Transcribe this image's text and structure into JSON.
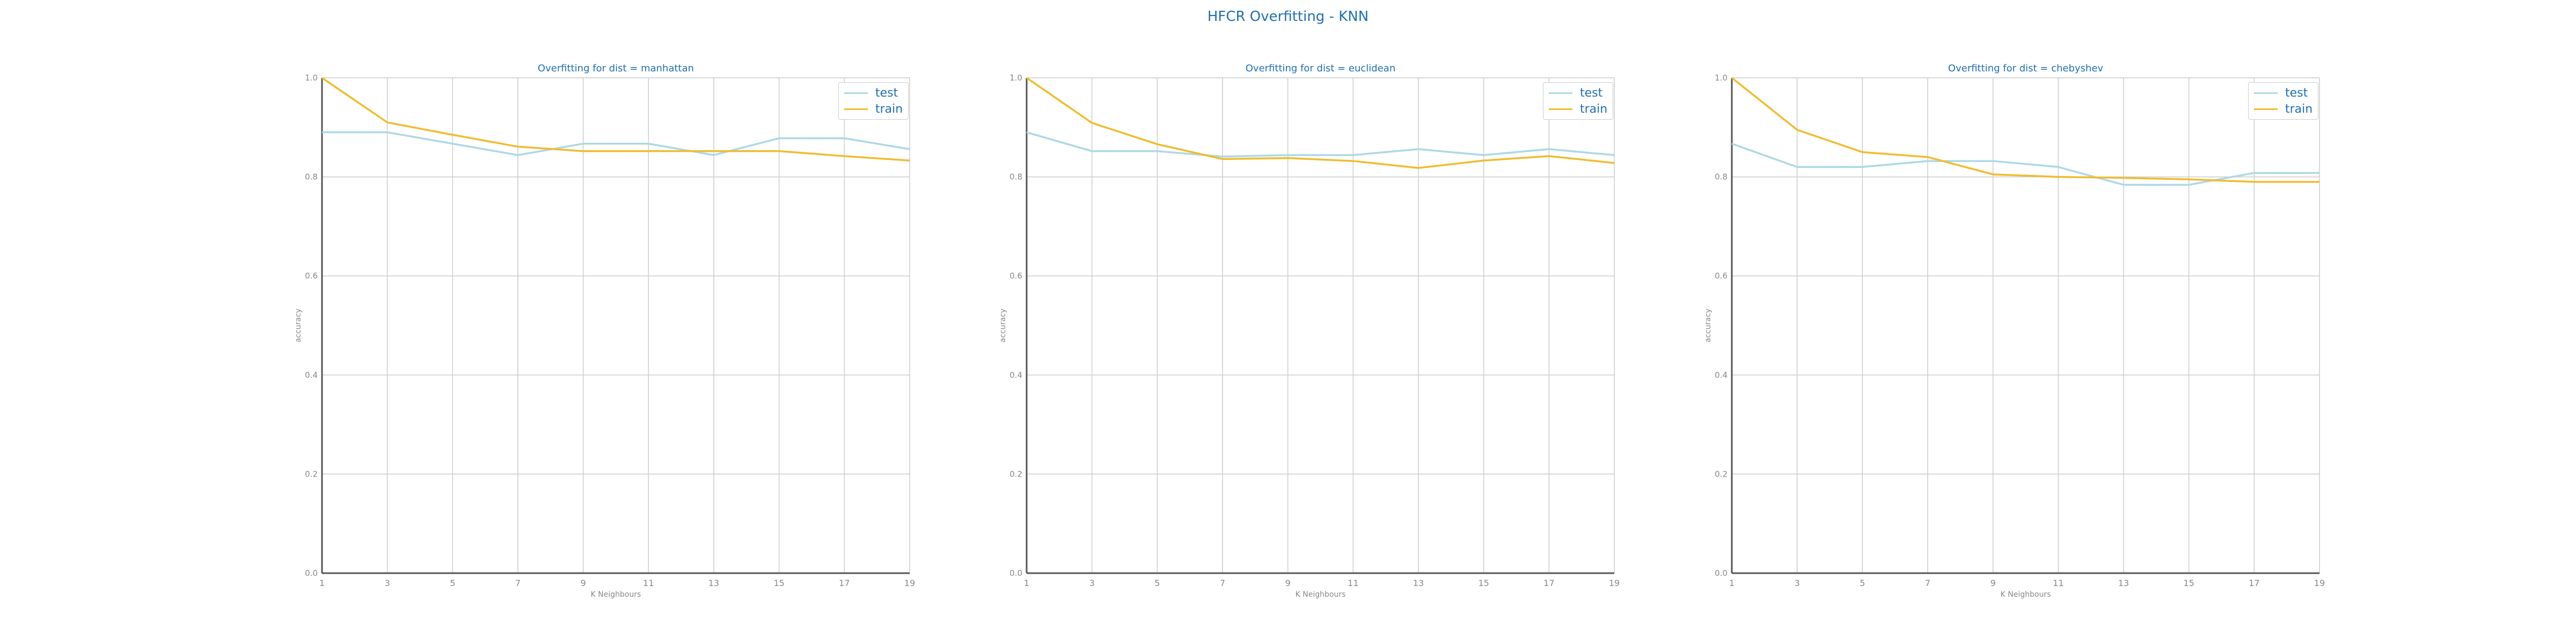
{
  "title": "HFCR Overfitting - KNN",
  "colors": {
    "test": "#add8e6",
    "train": "#f0bc2e",
    "text": "#1f6fb2",
    "grid": "#cccccc",
    "axis": "#555555",
    "tick": "#888888"
  },
  "chart_data": [
    {
      "type": "line",
      "title": "Overfitting for dist = manhattan",
      "xlabel": "K Neighbours",
      "ylabel": "accuracy",
      "x": [
        1,
        3,
        5,
        7,
        9,
        11,
        13,
        15,
        17,
        19
      ],
      "ylim": [
        0,
        1
      ],
      "yticks": [
        "0.0",
        "0.2",
        "0.4",
        "0.6",
        "0.8",
        "1.0"
      ],
      "legend_position": "top-right",
      "grid": true,
      "series": [
        {
          "name": "test",
          "color": "#add8e6",
          "values": [
            0.89,
            0.89,
            0.867,
            0.844,
            0.867,
            0.867,
            0.844,
            0.878,
            0.878,
            0.856
          ]
        },
        {
          "name": "train",
          "color": "#f0bc2e",
          "values": [
            1.0,
            0.91,
            0.885,
            0.861,
            0.852,
            0.852,
            0.852,
            0.852,
            0.842,
            0.833
          ]
        }
      ]
    },
    {
      "type": "line",
      "title": "Overfitting for dist = euclidean",
      "xlabel": "K Neighbours",
      "ylabel": "accuracy",
      "x": [
        1,
        3,
        5,
        7,
        9,
        11,
        13,
        15,
        17,
        19
      ],
      "ylim": [
        0,
        1
      ],
      "yticks": [
        "0.0",
        "0.2",
        "0.4",
        "0.6",
        "0.8",
        "1.0"
      ],
      "legend_position": "top-right",
      "grid": true,
      "series": [
        {
          "name": "test",
          "color": "#add8e6",
          "values": [
            0.89,
            0.852,
            0.852,
            0.841,
            0.844,
            0.844,
            0.856,
            0.844,
            0.856,
            0.844
          ]
        },
        {
          "name": "train",
          "color": "#f0bc2e",
          "values": [
            1.0,
            0.909,
            0.866,
            0.836,
            0.838,
            0.832,
            0.818,
            0.833,
            0.842,
            0.828
          ]
        }
      ]
    },
    {
      "type": "line",
      "title": "Overfitting for dist = chebyshev",
      "xlabel": "K Neighbours",
      "ylabel": "accuracy",
      "x": [
        1,
        3,
        5,
        7,
        9,
        11,
        13,
        15,
        17,
        19
      ],
      "ylim": [
        0,
        1
      ],
      "yticks": [
        "0.0",
        "0.2",
        "0.4",
        "0.6",
        "0.8",
        "1.0"
      ],
      "legend_position": "top-right",
      "grid": true,
      "series": [
        {
          "name": "test",
          "color": "#add8e6",
          "values": [
            0.867,
            0.82,
            0.82,
            0.832,
            0.832,
            0.82,
            0.784,
            0.784,
            0.808,
            0.808
          ]
        },
        {
          "name": "train",
          "color": "#f0bc2e",
          "values": [
            1.0,
            0.895,
            0.85,
            0.84,
            0.805,
            0.8,
            0.798,
            0.795,
            0.79,
            0.79
          ]
        }
      ]
    }
  ]
}
